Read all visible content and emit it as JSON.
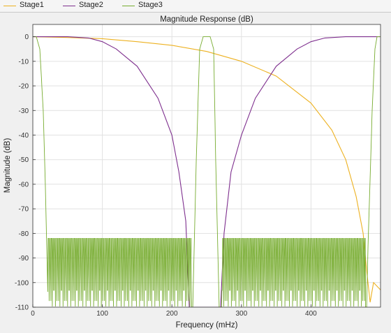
{
  "legend": {
    "items": [
      {
        "label": "Stage1",
        "color": "#edb120"
      },
      {
        "label": "Stage2",
        "color": "#7e2f8e"
      },
      {
        "label": "Stage3",
        "color": "#77ac30"
      }
    ]
  },
  "chart_data": {
    "type": "line",
    "title": "Magnitude Response (dB)",
    "xlabel": "Frequency (mHz)",
    "ylabel": "Magnitude (dB)",
    "xlim": [
      0,
      500
    ],
    "ylim": [
      -110,
      5
    ],
    "grid": true,
    "legend_position": "top",
    "xticks": [
      0,
      100,
      200,
      300,
      400
    ],
    "yticks": [
      0,
      -10,
      -20,
      -30,
      -40,
      -50,
      -60,
      -70,
      -80,
      -90,
      -100,
      -110
    ],
    "series": [
      {
        "name": "Stage1",
        "color": "#edb120",
        "x": [
          0,
          50,
          100,
          150,
          200,
          250,
          300,
          350,
          400,
          430,
          450,
          465,
          475,
          480,
          485,
          490,
          500
        ],
        "y": [
          0,
          -0.3,
          -0.8,
          -2,
          -3.5,
          -6,
          -10,
          -16,
          -27,
          -38,
          -50,
          -65,
          -80,
          -95,
          -108,
          -100,
          -103
        ]
      },
      {
        "name": "Stage2",
        "color": "#7e2f8e",
        "x": [
          0,
          20,
          50,
          80,
          100,
          120,
          150,
          180,
          200,
          210,
          220,
          225,
          270,
          275,
          285,
          300,
          320,
          350,
          380,
          400,
          420,
          450,
          480,
          500
        ],
        "y": [
          0,
          0,
          0,
          -0.5,
          -2,
          -5,
          -12,
          -25,
          -40,
          -55,
          -75,
          -110,
          -110,
          -80,
          -55,
          -40,
          -25,
          -12,
          -5,
          -2,
          -0.5,
          0,
          0,
          0
        ]
      },
      {
        "name": "Stage3",
        "color": "#77ac30",
        "description": "Passband 0 dB near 0, 250 and 500 mHz; stopband ripple between -82 and -110 dB",
        "x": [
          0,
          5,
          10,
          15,
          18,
          20,
          22,
          230,
          235,
          240,
          245,
          250,
          255,
          260,
          263,
          268,
          480,
          482,
          488,
          492,
          495,
          500
        ],
        "y": [
          0,
          0,
          -5,
          -30,
          -60,
          -85,
          -110,
          -110,
          -50,
          -5,
          0,
          0,
          0,
          -5,
          -50,
          -110,
          -110,
          -85,
          -30,
          -5,
          0,
          0
        ]
      }
    ]
  }
}
